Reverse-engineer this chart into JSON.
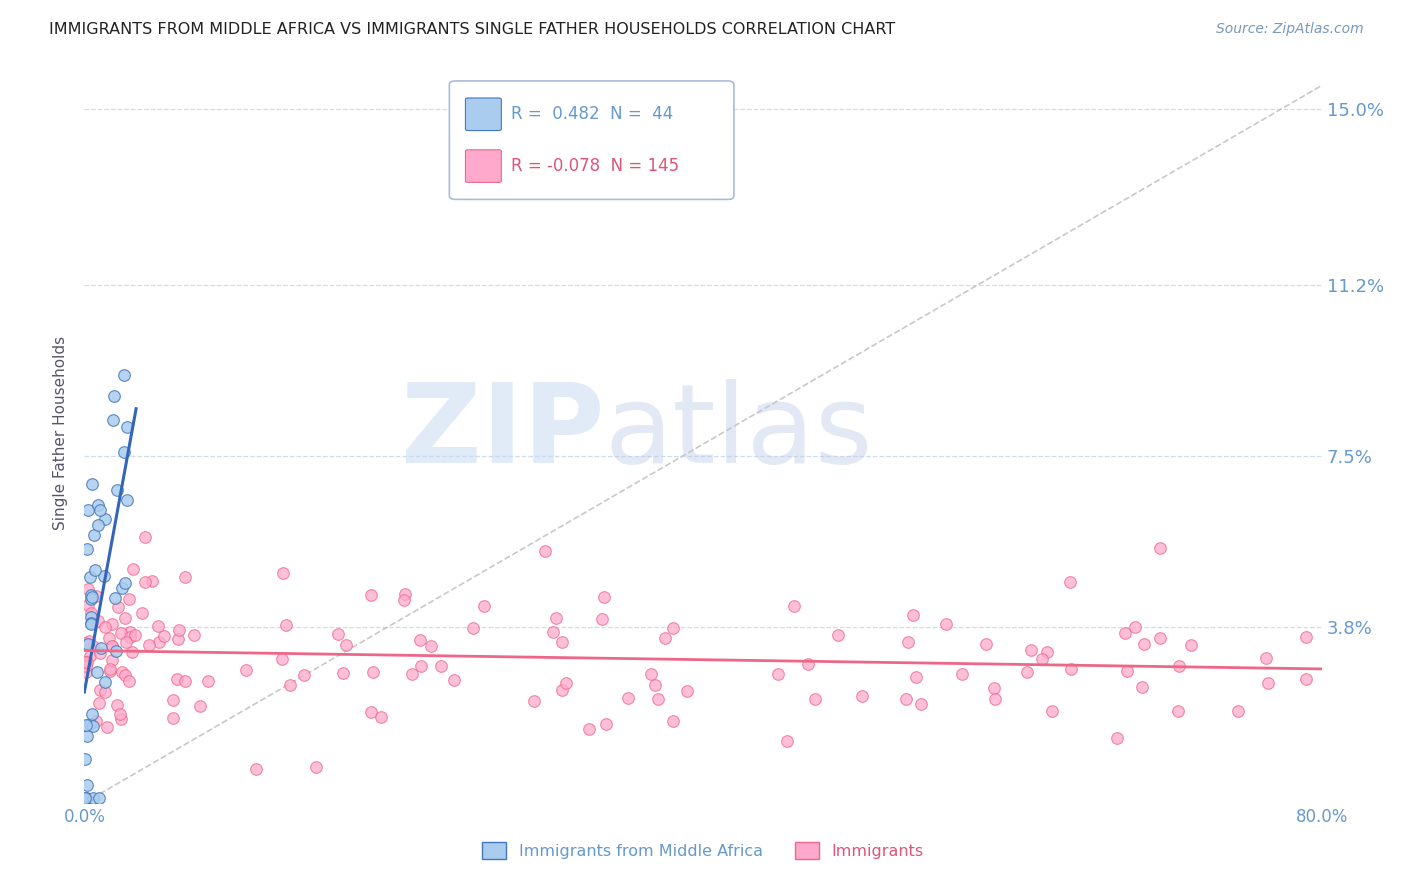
{
  "title": "IMMIGRANTS FROM MIDDLE AFRICA VS IMMIGRANTS SINGLE FATHER HOUSEHOLDS CORRELATION CHART",
  "source": "Source: ZipAtlas.com",
  "ylabel": "Single Father Households",
  "xlim": [
    0.0,
    0.8
  ],
  "ylim": [
    0.0,
    0.16
  ],
  "yticks": [
    0.038,
    0.075,
    0.112,
    0.15
  ],
  "ytick_labels": [
    "3.8%",
    "7.5%",
    "11.2%",
    "15.0%"
  ],
  "xticks": [
    0.0,
    0.1,
    0.2,
    0.3,
    0.4,
    0.5,
    0.6,
    0.7,
    0.8
  ],
  "xtick_labels": [
    "0.0%",
    "",
    "",
    "",
    "",
    "",
    "",
    "",
    "80.0%"
  ],
  "R_blue": 0.482,
  "N_blue": 44,
  "R_pink": -0.078,
  "N_pink": 145,
  "blue_fill": "#AACCEE",
  "blue_edge": "#4477BB",
  "pink_fill": "#FFAACC",
  "pink_edge": "#EE6688",
  "blue_line": "#3366BB",
  "pink_line": "#EE6688",
  "grid_color": "#CCDDEE",
  "bg_color": "#FFFFFF",
  "title_color": "#222222",
  "axis_color": "#6699CC",
  "source_color": "#7799BB"
}
